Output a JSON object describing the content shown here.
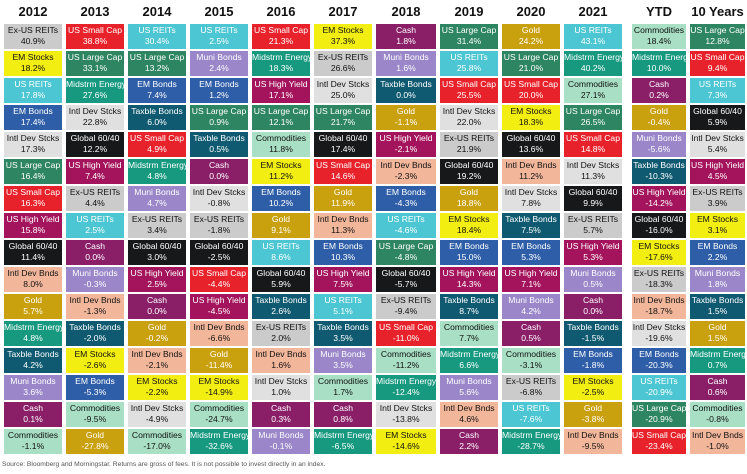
{
  "colors": {
    "US Small Cap": "#e8222b",
    "EM Stocks": "#f3ee12",
    "Ex-US REITs": "#cbcbcb",
    "US REITs": "#4cc6d2",
    "Intl Dev Stcks": "#e0e0e0",
    "US Large Cap": "#2e8561",
    "US High Yield": "#a4145c",
    "Global 60/40": "#16181a",
    "Intl Dev Bnds": "#f2b79b",
    "Gold": "#c9a00d",
    "Midstrm Energy": "#16997f",
    "Taxble Bonds": "#0f5a70",
    "Muni Bonds": "#9a86c8",
    "Cash": "#8a1f68",
    "Commodities": "#a9e0c5",
    "EM Bonds": "#2f5ea8"
  },
  "text_dark": [
    "Ex-US REITs",
    "EM Stocks",
    "Intl Dev Stcks",
    "Commodities",
    "Intl Dev Bnds"
  ],
  "chart_data": {
    "type": "table",
    "columns": [
      "2012",
      "2013",
      "2014",
      "2015",
      "2016",
      "2017",
      "2018",
      "2019",
      "2020",
      "2021",
      "YTD",
      "10 Years"
    ],
    "data": [
      [
        [
          "Ex-US REITs",
          "40.9%"
        ],
        [
          "EM Stocks",
          "18.2%"
        ],
        [
          "US REITs",
          "17.8%"
        ],
        [
          "EM Bonds",
          "17.4%"
        ],
        [
          "Intl Dev Stcks",
          "17.3%"
        ],
        [
          "US Large Cap",
          "16.4%"
        ],
        [
          "US Small Cap",
          "16.3%"
        ],
        [
          "US High Yield",
          "15.8%"
        ],
        [
          "Global 60/40",
          "11.4%"
        ],
        [
          "Intl Dev Bnds",
          "8.0%"
        ],
        [
          "Gold",
          "5.7%"
        ],
        [
          "Midstrm Energy",
          "4.8%"
        ],
        [
          "Taxble Bonds",
          "4.2%"
        ],
        [
          "Muni Bonds",
          "3.6%"
        ],
        [
          "Cash",
          "0.1%"
        ],
        [
          "Commodities",
          "-1.1%"
        ]
      ],
      [
        [
          "US Small Cap",
          "38.8%"
        ],
        [
          "US Large Cap",
          "33.1%"
        ],
        [
          "Midstrm Energy",
          "27.6%"
        ],
        [
          "Intl Dev Stcks",
          "22.8%"
        ],
        [
          "Global 60/40",
          "12.2%"
        ],
        [
          "US High Yield",
          "7.4%"
        ],
        [
          "Ex-US REITs",
          "4.4%"
        ],
        [
          "US REITs",
          "2.5%"
        ],
        [
          "Cash",
          "0.0%"
        ],
        [
          "Muni Bonds",
          "-0.3%"
        ],
        [
          "Intl Dev Bnds",
          "-1.3%"
        ],
        [
          "Taxble Bonds",
          "-2.0%"
        ],
        [
          "EM Stocks",
          "-2.6%"
        ],
        [
          "EM Bonds",
          "-5.3%"
        ],
        [
          "Commodities",
          "-9.5%"
        ],
        [
          "Gold",
          "-27.8%"
        ]
      ],
      [
        [
          "US REITs",
          "30.4%"
        ],
        [
          "US Large Cap",
          "13.2%"
        ],
        [
          "EM Bonds",
          "7.4%"
        ],
        [
          "Taxble Bonds",
          "6.0%"
        ],
        [
          "US Small Cap",
          "4.9%"
        ],
        [
          "Midstrm Energy",
          "4.8%"
        ],
        [
          "Muni Bonds",
          "4.7%"
        ],
        [
          "Ex-US REITs",
          "3.4%"
        ],
        [
          "Global 60/40",
          "3.0%"
        ],
        [
          "US High Yield",
          "2.5%"
        ],
        [
          "Cash",
          "0.0%"
        ],
        [
          "Gold",
          "-0.2%"
        ],
        [
          "Intl Dev Bnds",
          "-2.1%"
        ],
        [
          "EM Stocks",
          "-2.2%"
        ],
        [
          "Intl Dev Stcks",
          "-4.9%"
        ],
        [
          "Commodities",
          "-17.0%"
        ]
      ],
      [
        [
          "US REITs",
          "2.5%"
        ],
        [
          "Muni Bonds",
          "2.4%"
        ],
        [
          "EM Bonds",
          "1.2%"
        ],
        [
          "US Large Cap",
          "0.9%"
        ],
        [
          "Taxble Bonds",
          "0.5%"
        ],
        [
          "Cash",
          "0.0%"
        ],
        [
          "Intl Dev Stcks",
          "-0.8%"
        ],
        [
          "Ex-US REITs",
          "-1.8%"
        ],
        [
          "Global 60/40",
          "-2.5%"
        ],
        [
          "US Small Cap",
          "-4.4%"
        ],
        [
          "US High Yield",
          "-4.5%"
        ],
        [
          "Intl Dev Bnds",
          "-6.6%"
        ],
        [
          "Gold",
          "-11.4%"
        ],
        [
          "EM Stocks",
          "-14.9%"
        ],
        [
          "Commodities",
          "-24.7%"
        ],
        [
          "Midstrm Energy",
          "-32.6%"
        ]
      ],
      [
        [
          "US Small Cap",
          "21.3%"
        ],
        [
          "Midstrm Energy",
          "18.3%"
        ],
        [
          "US High Yield",
          "17.1%"
        ],
        [
          "US Large Cap",
          "12.1%"
        ],
        [
          "Commodities",
          "11.8%"
        ],
        [
          "EM Stocks",
          "11.2%"
        ],
        [
          "EM Bonds",
          "10.2%"
        ],
        [
          "Gold",
          "9.1%"
        ],
        [
          "US REITs",
          "8.6%"
        ],
        [
          "Global 60/40",
          "5.9%"
        ],
        [
          "Taxble Bonds",
          "2.6%"
        ],
        [
          "Ex-US REITs",
          "2.0%"
        ],
        [
          "Intl Dev Bnds",
          "1.6%"
        ],
        [
          "Intl Dev Stcks",
          "1.0%"
        ],
        [
          "Cash",
          "0.3%"
        ],
        [
          "Muni Bonds",
          "-0.1%"
        ]
      ],
      [
        [
          "EM Stocks",
          "37.3%"
        ],
        [
          "Ex-US REITs",
          "26.6%"
        ],
        [
          "Intl Dev Stcks",
          "25.0%"
        ],
        [
          "US Large Cap",
          "21.7%"
        ],
        [
          "Global 60/40",
          "17.4%"
        ],
        [
          "US Small Cap",
          "14.6%"
        ],
        [
          "Gold",
          "11.9%"
        ],
        [
          "Intl Dev Bnds",
          "11.3%"
        ],
        [
          "EM Bonds",
          "10.3%"
        ],
        [
          "US High Yield",
          "7.5%"
        ],
        [
          "US REITs",
          "5.1%"
        ],
        [
          "Taxble Bonds",
          "3.5%"
        ],
        [
          "Muni Bonds",
          "3.5%"
        ],
        [
          "Commodities",
          "1.7%"
        ],
        [
          "Cash",
          "0.8%"
        ],
        [
          "Midstrm Energy",
          "-6.5%"
        ]
      ],
      [
        [
          "Cash",
          "1.8%"
        ],
        [
          "Muni Bonds",
          "1.6%"
        ],
        [
          "Taxble Bonds",
          "0.0%"
        ],
        [
          "Gold",
          "-1.1%"
        ],
        [
          "US High Yield",
          "-2.1%"
        ],
        [
          "Intl Dev Bnds",
          "-2.3%"
        ],
        [
          "EM Bonds",
          "-4.3%"
        ],
        [
          "US REITs",
          "-4.6%"
        ],
        [
          "US Large Cap",
          "-4.8%"
        ],
        [
          "Global 60/40",
          "-5.7%"
        ],
        [
          "Ex-US REITs",
          "-9.4%"
        ],
        [
          "US Small Cap",
          "-11.0%"
        ],
        [
          "Commodities",
          "-11.2%"
        ],
        [
          "Midstrm Energy",
          "-12.4%"
        ],
        [
          "Intl Dev Stcks",
          "-13.8%"
        ],
        [
          "EM Stocks",
          "-14.6%"
        ]
      ],
      [
        [
          "US Large Cap",
          "31.4%"
        ],
        [
          "US REITs",
          "25.8%"
        ],
        [
          "US Small Cap",
          "25.5%"
        ],
        [
          "Intl Dev Stcks",
          "22.0%"
        ],
        [
          "Ex-US REITs",
          "21.9%"
        ],
        [
          "Global 60/40",
          "19.2%"
        ],
        [
          "Gold",
          "18.8%"
        ],
        [
          "EM Stocks",
          "18.4%"
        ],
        [
          "EM Bonds",
          "15.0%"
        ],
        [
          "US High Yield",
          "14.3%"
        ],
        [
          "Taxble Bonds",
          "8.7%"
        ],
        [
          "Commodities",
          "7.7%"
        ],
        [
          "Midstrm Energy",
          "6.6%"
        ],
        [
          "Muni Bonds",
          "5.6%"
        ],
        [
          "Intl Dev Bnds",
          "4.6%"
        ],
        [
          "Cash",
          "2.2%"
        ]
      ],
      [
        [
          "Gold",
          "24.2%"
        ],
        [
          "US Large Cap",
          "21.0%"
        ],
        [
          "US Small Cap",
          "20.0%"
        ],
        [
          "EM Stocks",
          "18.3%"
        ],
        [
          "Global 60/40",
          "13.6%"
        ],
        [
          "Intl Dev Bnds",
          "11.2%"
        ],
        [
          "Intl Dev Stcks",
          "7.8%"
        ],
        [
          "Taxble Bonds",
          "7.5%"
        ],
        [
          "EM Bonds",
          "5.3%"
        ],
        [
          "US High Yield",
          "7.1%"
        ],
        [
          "Muni Bonds",
          "4.2%"
        ],
        [
          "Cash",
          "0.5%"
        ],
        [
          "Commodities",
          "-3.1%"
        ],
        [
          "Ex-US REITs",
          "-6.8%"
        ],
        [
          "US REITs",
          "-7.6%"
        ],
        [
          "Midstrm Energy",
          "-28.7%"
        ]
      ],
      [
        [
          "US REITs",
          "43.1%"
        ],
        [
          "Midstrm Energy",
          "40.2%"
        ],
        [
          "Commodities",
          "27.1%"
        ],
        [
          "US Large Cap",
          "26.5%"
        ],
        [
          "US Small Cap",
          "14.8%"
        ],
        [
          "Intl Dev Stcks",
          "11.3%"
        ],
        [
          "Global 60/40",
          "9.9%"
        ],
        [
          "Ex-US REITs",
          "5.7%"
        ],
        [
          "US High Yield",
          "5.3%"
        ],
        [
          "Muni Bonds",
          "0.5%"
        ],
        [
          "Cash",
          "0.0%"
        ],
        [
          "Taxble Bonds",
          "-1.5%"
        ],
        [
          "EM Bonds",
          "-1.8%"
        ],
        [
          "EM Stocks",
          "-2.5%"
        ],
        [
          "Gold",
          "-3.8%"
        ],
        [
          "Intl Dev Bnds",
          "-9.5%"
        ]
      ],
      [
        [
          "Commodities",
          "18.4%"
        ],
        [
          "Midstrm Energy",
          "10.0%"
        ],
        [
          "Cash",
          "0.2%"
        ],
        [
          "Gold",
          "-0.4%"
        ],
        [
          "Muni Bonds",
          "-5.6%"
        ],
        [
          "Taxble Bonds",
          "-10.3%"
        ],
        [
          "US High Yield",
          "-14.2%"
        ],
        [
          "Global 60/40",
          "-16.0%"
        ],
        [
          "EM Stocks",
          "-17.6%"
        ],
        [
          "Ex-US REITs",
          "-18.3%"
        ],
        [
          "Intl Dev Bnds",
          "-18.7%"
        ],
        [
          "Intl Dev Stcks",
          "-19.6%"
        ],
        [
          "EM Bonds",
          "-20.3%"
        ],
        [
          "US REITs",
          "-20.9%"
        ],
        [
          "US Large Cap",
          "-20.9%"
        ],
        [
          "US Small Cap",
          "-23.4%"
        ]
      ],
      [
        [
          "US Large Cap",
          "12.8%"
        ],
        [
          "US Small Cap",
          "9.4%"
        ],
        [
          "US REITs",
          "7.3%"
        ],
        [
          "Global 60/40",
          "5.9%"
        ],
        [
          "Intl Dev Stcks",
          "5.4%"
        ],
        [
          "US High Yield",
          "4.5%"
        ],
        [
          "Ex-US REITs",
          "3.9%"
        ],
        [
          "EM Stocks",
          "3.1%"
        ],
        [
          "EM Bonds",
          "2.2%"
        ],
        [
          "Muni Bonds",
          "1.8%"
        ],
        [
          "Taxble Bonds",
          "1.5%"
        ],
        [
          "Gold",
          "1.5%"
        ],
        [
          "Midstrm Energy",
          "0.7%"
        ],
        [
          "Cash",
          "0.6%"
        ],
        [
          "Commodities",
          "-0.8%"
        ],
        [
          "Intl Dev Bnds",
          "-1.0%"
        ]
      ]
    ]
  },
  "footer": {
    "source": "Source: Bloomberg and Morningstar. Returns are gross of fees. It is not possible to invest directly in an index."
  }
}
